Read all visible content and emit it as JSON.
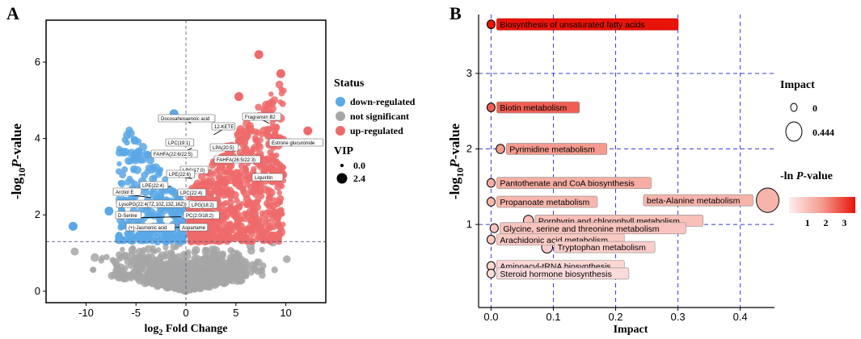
{
  "chart_data": [
    {
      "panel": "A",
      "type": "scatter",
      "title": "",
      "xlabel": "log2 Fold Change",
      "ylabel": "-log10 P-value",
      "xlim": [
        -14,
        14
      ],
      "ylim": [
        -0.3,
        7.1
      ],
      "x_ticks": [
        -10,
        -5,
        0,
        5,
        10
      ],
      "y_ticks": [
        0,
        2,
        4,
        6
      ],
      "thresholds": {
        "x": 0,
        "y": 1.3
      },
      "status_colors": {
        "down-regulated": "#5ba8e6",
        "not significant": "#a6a6a6",
        "up-regulated": "#ef6a6a"
      },
      "legend": {
        "status_title": "Status",
        "status_items": [
          "down-regulated",
          "not significant",
          "up-regulated"
        ],
        "vip_title": "VIP",
        "vip_items": [
          "0.0",
          "2.4"
        ]
      },
      "highlighted_points": [
        {
          "x": 7.3,
          "y": 6.2,
          "status": "up-regulated"
        },
        {
          "x": 5.3,
          "y": 5.1,
          "status": "up-regulated"
        },
        {
          "x": -1.2,
          "y": 4.65,
          "status": "down-regulated"
        },
        {
          "x": 9.5,
          "y": 5.7,
          "status": "up-regulated"
        },
        {
          "x": -7.7,
          "y": 2.1,
          "status": "down-regulated"
        },
        {
          "x": -11.3,
          "y": 1.7,
          "status": "down-regulated"
        },
        {
          "x": -5.1,
          "y": 3.5,
          "status": "down-regulated"
        },
        {
          "x": 12.2,
          "y": 4.2,
          "status": "up-regulated"
        }
      ],
      "annotations": [
        {
          "label": "Docosahexaenoic acid",
          "x": 0.5,
          "y": 4.4
        },
        {
          "label": "12-KETE",
          "x": 2.8,
          "y": 4.1
        },
        {
          "label": "Fragransin B2",
          "x": 8.3,
          "y": 4.4
        },
        {
          "label": "Estrone glucuronide",
          "x": 10.4,
          "y": 4.0
        },
        {
          "label": "LPC(19:1)",
          "x": 0.2,
          "y": 3.95
        },
        {
          "label": "LPA(20:5)",
          "x": 3.0,
          "y": 3.7
        },
        {
          "label": "FAHFA(22:6/22:5)",
          "x": 0.6,
          "y": 3.75
        },
        {
          "label": "FAHFA(26:5/22:3)",
          "x": 3.8,
          "y": 3.4
        },
        {
          "label": "LPC(17:0)",
          "x": 0.5,
          "y": 3.1
        },
        {
          "label": "LPE(22:6)",
          "x": 0.6,
          "y": 2.95
        },
        {
          "label": "Liquiritin",
          "x": 6.8,
          "y": 3.1
        },
        {
          "label": "LPE(22:4)",
          "x": -1.5,
          "y": 2.75
        },
        {
          "label": "Arctiol E",
          "x": -3.5,
          "y": 2.45
        },
        {
          "label": "LPC(22:4)",
          "x": 1.0,
          "y": 2.5
        },
        {
          "label": "LysoPG(22:4(7Z,10Z,13Z,16Z))",
          "x": -0.3,
          "y": 2.3
        },
        {
          "label": "LPG(18:2)",
          "x": 1.5,
          "y": 2.2
        },
        {
          "label": "D-Serine",
          "x": -0.5,
          "y": 1.95
        },
        {
          "label": "PC(2:0/18:2)",
          "x": 1.6,
          "y": 1.95
        },
        {
          "label": "(+)-Jasmonic acid",
          "x": 0.2,
          "y": 1.7
        },
        {
          "label": "Aspartame",
          "x": 0.4,
          "y": 1.7
        }
      ]
    },
    {
      "panel": "B",
      "type": "bubble",
      "title": "",
      "xlabel": "Impact",
      "ylabel": "-log10 P-value",
      "xlim": [
        -0.02,
        0.455
      ],
      "ylim": [
        -0.1,
        3.78
      ],
      "x_ticks": [
        0.0,
        0.1,
        0.2,
        0.3,
        0.4
      ],
      "y_ticks": [
        1,
        2,
        3
      ],
      "legend": {
        "impact_title": "Impact",
        "impact_items": [
          "0",
          "0.444"
        ],
        "color_title": "-ln P-value",
        "color_ticks": [
          "1",
          "2",
          "3"
        ]
      },
      "points": [
        {
          "name": "Biosynthesis of unsaturated fatty acids",
          "impact": 0.0,
          "neg_log10_p": 3.65,
          "neg_ln_p": 3.6
        },
        {
          "name": "Biotin metabolism",
          "impact": 0.0,
          "neg_log10_p": 2.55,
          "neg_ln_p": 2.6
        },
        {
          "name": "Pyrimidine metabolism",
          "impact": 0.015,
          "neg_log10_p": 2.0,
          "neg_ln_p": 1.8
        },
        {
          "name": "Pantothenate and CoA biosynthesis",
          "impact": 0.0,
          "neg_log10_p": 1.55,
          "neg_ln_p": 1.4
        },
        {
          "name": "Propanoate metabolism",
          "impact": 0.0,
          "neg_log10_p": 1.3,
          "neg_ln_p": 1.2
        },
        {
          "name": "beta-Alanine metabolism",
          "impact": 0.444,
          "neg_log10_p": 1.32,
          "neg_ln_p": 1.25
        },
        {
          "name": "Porphyrin and chlorophyll metabolism",
          "impact": 0.06,
          "neg_log10_p": 1.05,
          "neg_ln_p": 1.0
        },
        {
          "name": "Glycine, serine and threonine metabolism",
          "impact": 0.005,
          "neg_log10_p": 0.95,
          "neg_ln_p": 0.9
        },
        {
          "name": "Arachidonic acid metabolism",
          "impact": 0.0,
          "neg_log10_p": 0.8,
          "neg_ln_p": 0.8
        },
        {
          "name": "Tryptophan metabolism",
          "impact": 0.09,
          "neg_log10_p": 0.7,
          "neg_ln_p": 0.7
        },
        {
          "name": "Aminoacyl-tRNA biosynthesis",
          "impact": 0.0,
          "neg_log10_p": 0.45,
          "neg_ln_p": 0.5
        },
        {
          "name": "Steroid hormone biosynthesis",
          "impact": 0.0,
          "neg_log10_p": 0.35,
          "neg_ln_p": 0.4
        }
      ]
    }
  ],
  "panel_labels": {
    "a": "A",
    "b": "B"
  },
  "axis_text": {
    "a_x_log": "log",
    "a_x_sub": "2",
    "a_x_rest": " Fold Change",
    "a_y_pre": "-log",
    "a_y_sub": "10",
    "a_y_p": "P",
    "a_y_post": "-value",
    "b_x": "Impact",
    "b_y_pre": "-log",
    "b_y_sub": "10",
    "b_y_p": "P",
    "b_y_post": "-value"
  },
  "colorbar_title_pre": "-ln ",
  "colorbar_title_p": "P",
  "colorbar_title_post": "-value"
}
